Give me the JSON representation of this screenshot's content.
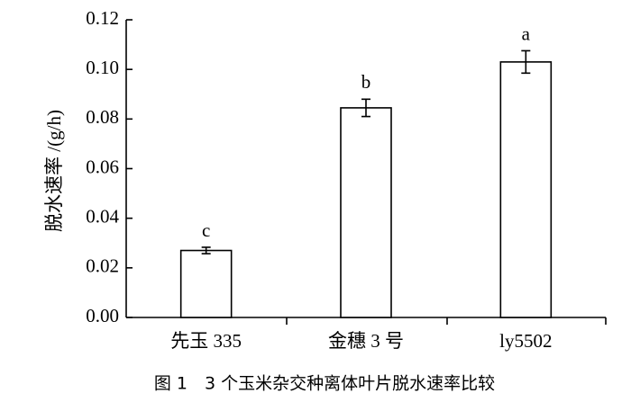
{
  "chart_data": {
    "type": "bar",
    "ylabel": "脱水速率 /(g/h)",
    "caption": "图 1　3 个玉米杂交种离体叶片脱水速率比较",
    "categories": [
      "先玉 335",
      "金穗 3 号",
      "ly5502"
    ],
    "values": [
      0.027,
      0.0845,
      0.103
    ],
    "errors": [
      0.0013,
      0.0035,
      0.0045
    ],
    "annotations": [
      "c",
      "b",
      "a"
    ],
    "color": "#ffffff",
    "ylim": [
      0,
      0.12
    ],
    "yticks": [
      {
        "value": 0,
        "label": "0.00"
      },
      {
        "value": 0.02,
        "label": "0.02"
      },
      {
        "value": 0.04,
        "label": "0.04"
      },
      {
        "value": 0.06,
        "label": "0.06"
      },
      {
        "value": 0.08,
        "label": "0.08"
      },
      {
        "value": 0.1,
        "label": "0.10"
      },
      {
        "value": 0.12,
        "label": "0.12"
      }
    ],
    "grid": false
  }
}
